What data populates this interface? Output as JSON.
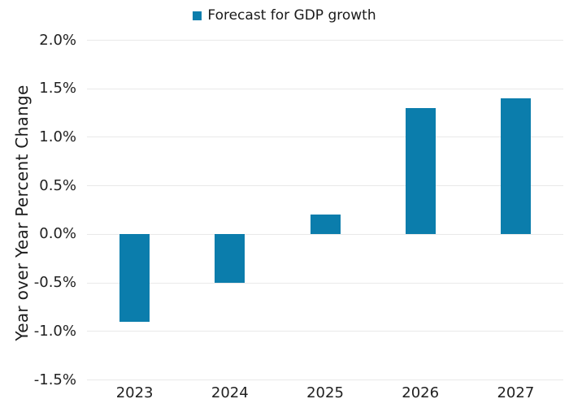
{
  "chart_data": {
    "type": "bar",
    "title": "",
    "xlabel": "",
    "ylabel": "Year over Year Percent Change",
    "categories": [
      "2023",
      "2024",
      "2025",
      "2026",
      "2027"
    ],
    "values": [
      -0.9,
      -0.5,
      0.2,
      1.3,
      1.4
    ],
    "series": [
      {
        "name": "Forecast for GDP growth",
        "values": [
          -0.9,
          -0.5,
          0.2,
          1.3,
          1.4
        ]
      }
    ],
    "legend": [
      "Forecast for GDP growth"
    ],
    "legend_position": "top-center",
    "ylim": [
      -1.5,
      2.0
    ],
    "ytick_step": 0.5,
    "ytick_labels": [
      "2.0%",
      "1.5%",
      "1.0%",
      "0.5%",
      "0.0%",
      "-0.5%",
      "-1.0%",
      "-1.5%"
    ],
    "grid": "horizontal",
    "colors": {
      "bar": "#0B7DAC",
      "gridline": "#E9E9E9",
      "text": "#212121"
    }
  }
}
